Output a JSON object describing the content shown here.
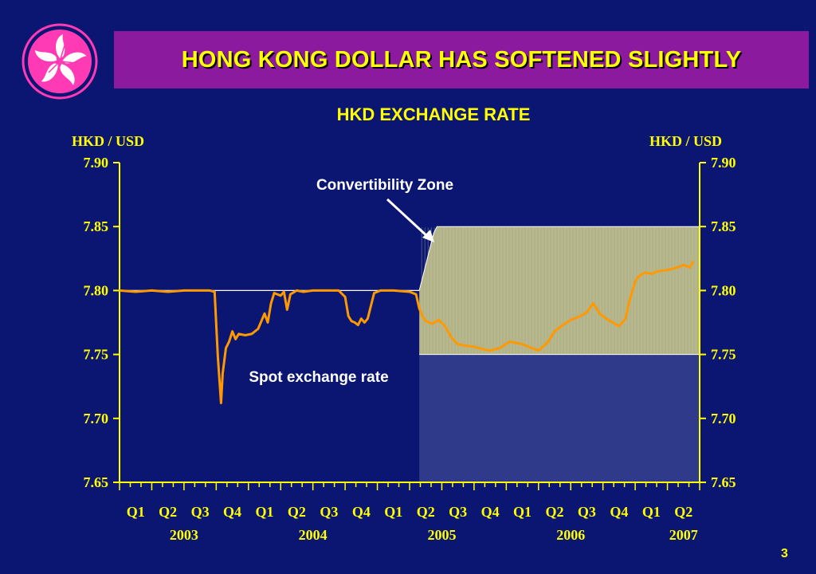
{
  "title": "HONG KONG DOLLAR HAS SOFTENED SLIGHTLY",
  "page_number": "3",
  "colors": {
    "background": "#0b1673",
    "title_bar": "#8b1a9e",
    "title_text": "#ffff00",
    "axis": "#ffff00",
    "spot_line": "#ff9900",
    "zone_fill": "#b3b38a",
    "zone_lower": "#2f3a8a",
    "logo": "#ff3ab4"
  },
  "logo_icon": "bauhinia-flower-icon",
  "chart_data": {
    "type": "line",
    "title": "HKD EXCHANGE RATE",
    "ylabel_left": "HKD / USD",
    "ylabel_right": "HKD / USD",
    "ylim": [
      7.65,
      7.9
    ],
    "yticks": [
      "7.90",
      "7.85",
      "7.80",
      "7.75",
      "7.70",
      "7.65"
    ],
    "grid": false,
    "quarter_labels": [
      "Q1",
      "Q2",
      "Q3",
      "Q4",
      "Q1",
      "Q2",
      "Q3",
      "Q4",
      "Q1",
      "Q2",
      "Q3",
      "Q4",
      "Q1",
      "Q2",
      "Q3",
      "Q4",
      "Q1",
      "Q2"
    ],
    "year_labels": [
      {
        "label": "2003",
        "quarter_index": 1.5
      },
      {
        "label": "2004",
        "quarter_index": 5.5
      },
      {
        "label": "2005",
        "quarter_index": 9.5
      },
      {
        "label": "2006",
        "quarter_index": 13.5
      },
      {
        "label": "2007",
        "quarter_index": 17.0
      }
    ],
    "x_unit": "quarter index from Q1 2003",
    "x_range": [
      -0.5,
      17.5
    ],
    "peg_rate": 7.8,
    "convertibility_zone": {
      "label": "Convertibility Zone",
      "upper": [
        [
          8.8,
          7.8
        ],
        [
          8.85,
          7.805
        ],
        [
          8.95,
          7.815
        ],
        [
          9.05,
          7.825
        ],
        [
          9.15,
          7.835
        ],
        [
          9.25,
          7.845
        ],
        [
          9.35,
          7.85
        ],
        [
          17.5,
          7.85
        ]
      ],
      "lower": 7.75,
      "start": 8.8
    },
    "series": [
      {
        "label": "Spot exchange rate",
        "x": [
          -0.5,
          0,
          0.5,
          1,
          1.5,
          2,
          2.3,
          2.45,
          2.55,
          2.6,
          2.65,
          2.7,
          2.8,
          2.9,
          3.0,
          3.1,
          3.2,
          3.4,
          3.6,
          3.8,
          4.0,
          4.1,
          4.2,
          4.3,
          4.5,
          4.6,
          4.7,
          4.8,
          5.0,
          5.2,
          5.5,
          6.0,
          6.3,
          6.5,
          6.6,
          6.7,
          6.8,
          6.9,
          7.0,
          7.1,
          7.2,
          7.4,
          7.6,
          8.0,
          8.5,
          8.7,
          8.8,
          8.9,
          9.0,
          9.2,
          9.4,
          9.6,
          9.8,
          10.0,
          10.2,
          10.5,
          10.8,
          11.0,
          11.3,
          11.6,
          12.0,
          12.3,
          12.5,
          12.8,
          13.0,
          13.2,
          13.5,
          13.8,
          14.0,
          14.2,
          14.4,
          14.6,
          14.8,
          15.0,
          15.2,
          15.3,
          15.5,
          15.6,
          15.8,
          16.0,
          16.2,
          16.5,
          16.8,
          17.0,
          17.2,
          17.3
        ],
        "y": [
          7.8,
          7.799,
          7.8,
          7.799,
          7.8,
          7.8,
          7.8,
          7.799,
          7.748,
          7.73,
          7.712,
          7.735,
          7.755,
          7.76,
          7.768,
          7.762,
          7.766,
          7.765,
          7.766,
          7.77,
          7.782,
          7.775,
          7.79,
          7.798,
          7.796,
          7.799,
          7.785,
          7.797,
          7.8,
          7.799,
          7.8,
          7.8,
          7.8,
          7.795,
          7.78,
          7.776,
          7.775,
          7.773,
          7.778,
          7.775,
          7.778,
          7.798,
          7.8,
          7.8,
          7.799,
          7.797,
          7.786,
          7.78,
          7.776,
          7.774,
          7.777,
          7.772,
          7.763,
          7.758,
          7.757,
          7.756,
          7.754,
          7.753,
          7.755,
          7.76,
          7.758,
          7.755,
          7.753,
          7.76,
          7.768,
          7.772,
          7.777,
          7.78,
          7.783,
          7.79,
          7.782,
          7.778,
          7.775,
          7.772,
          7.778,
          7.79,
          7.807,
          7.811,
          7.814,
          7.813,
          7.815,
          7.816,
          7.818,
          7.82,
          7.818,
          7.823
        ]
      }
    ],
    "annotations": [
      "Convertibility Zone",
      "Spot exchange rate"
    ]
  }
}
